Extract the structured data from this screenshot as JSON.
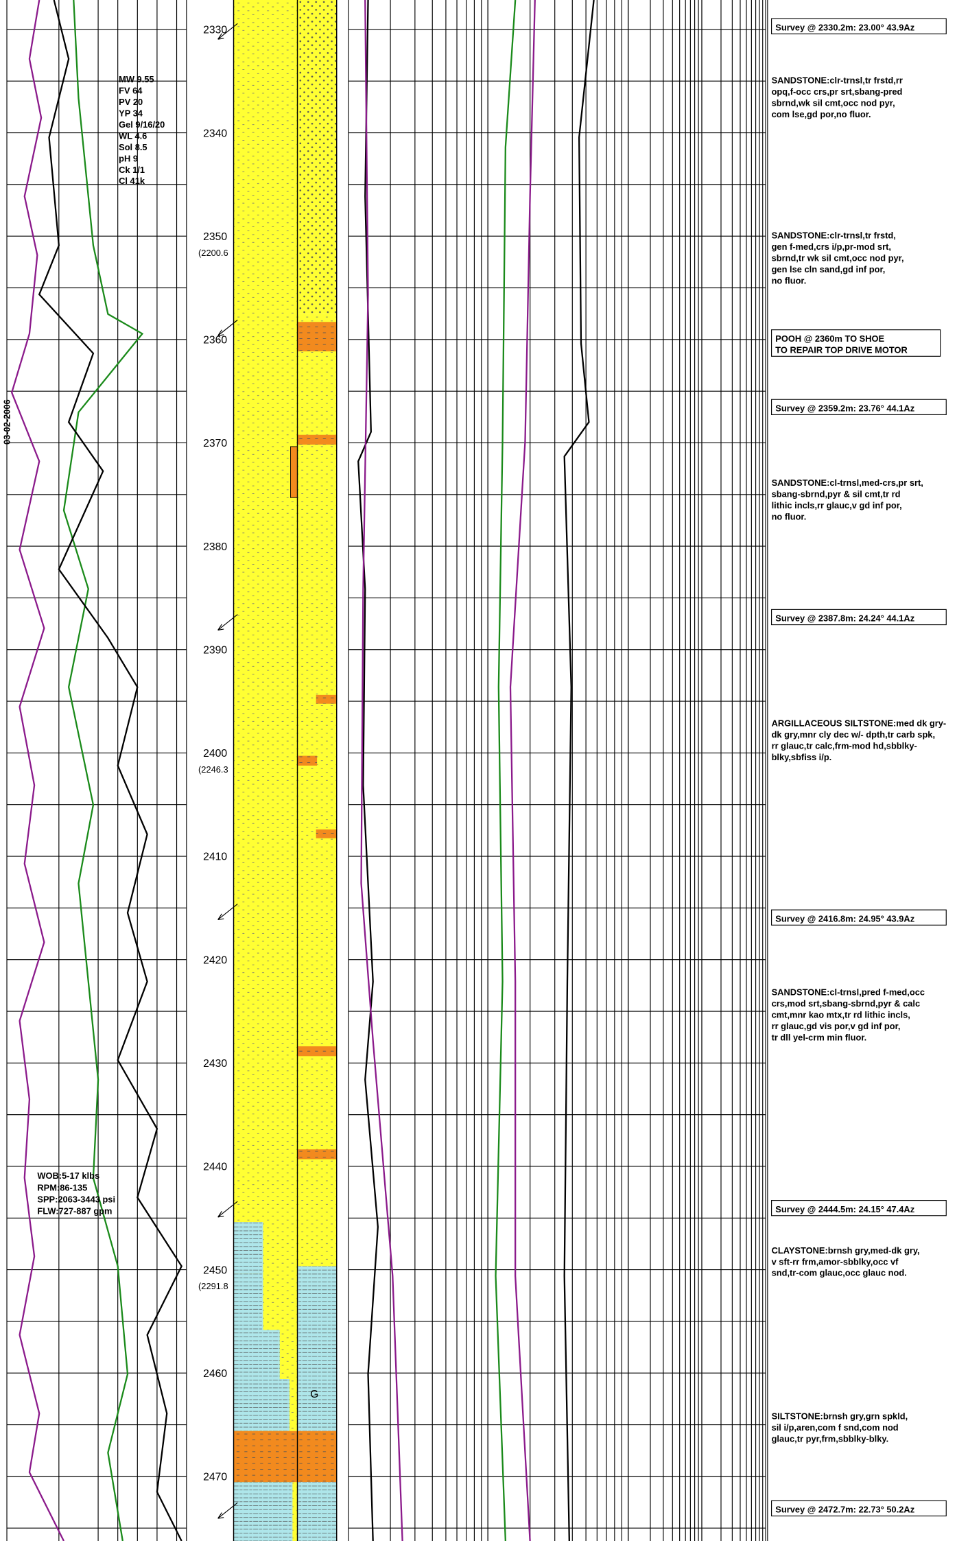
{
  "date": "03-02-2006",
  "depth_ticks": [
    2330,
    2340,
    2350,
    2360,
    2370,
    2380,
    2390,
    2400,
    2410,
    2420,
    2430,
    2440,
    2450,
    2460,
    2470
  ],
  "tvd_labels": [
    "(2200.6",
    "(2246.3",
    "(2291.8"
  ],
  "mud_properties": [
    "MW 9.55",
    "FV 64",
    "PV 20",
    "YP 34",
    "Gel 9/16/20",
    "WL 4.6",
    "Sol 8.5",
    "pH 9",
    "Ck 1/1",
    "Cl 41k"
  ],
  "drilling_parameters": [
    "WOB:5-17 klbs",
    "RPM:86-135",
    "SPP:2063-3443 psi",
    "FLW:727-887 gpm"
  ],
  "lithology_symbol": "G",
  "remarks": [
    {
      "boxed": true,
      "lines": [
        "Survey @ 2330.2m: 23.00° 43.9Az"
      ]
    },
    {
      "boxed": false,
      "lines": [
        "SANDSTONE:clr-trnsl,tr frstd,rr",
        "opq,f-occ crs,pr srt,sbang-pred",
        "sbrnd,wk sil cmt,occ nod pyr,",
        "com lse,gd por,no fluor."
      ]
    },
    {
      "boxed": false,
      "lines": [
        "SANDSTONE:clr-trnsl,tr frstd,",
        "gen f-med,crs i/p,pr-mod srt,",
        "sbrnd,tr wk sil cmt,occ nod pyr,",
        "gen lse cln sand,gd inf por,",
        "no fluor."
      ]
    },
    {
      "boxed": true,
      "lines": [
        "POOH @ 2360m TO SHOE",
        "TO REPAIR TOP DRIVE MOTOR"
      ]
    },
    {
      "boxed": true,
      "lines": [
        "Survey @ 2359.2m: 23.76° 44.1Az"
      ]
    },
    {
      "boxed": false,
      "lines": [
        "SANDSTONE:cl-trnsl,med-crs,pr srt,",
        "sbang-sbrnd,pyr & sil cmt,tr rd",
        "lithic incls,rr glauc,v gd inf por,",
        "no fluor."
      ]
    },
    {
      "boxed": true,
      "lines": [
        "Survey @ 2387.8m: 24.24° 44.1Az"
      ]
    },
    {
      "boxed": false,
      "lines": [
        "ARGILLACEOUS SILTSTONE:med dk gry-",
        "dk gry,mnr cly dec w/- dpth,tr carb spk,",
        "rr glauc,tr calc,frm-mod hd,sbblky-",
        "blky,sbfiss i/p."
      ]
    },
    {
      "boxed": true,
      "lines": [
        "Survey @ 2416.8m: 24.95° 43.9Az"
      ]
    },
    {
      "boxed": false,
      "lines": [
        "SANDSTONE:cl-trnsl,pred f-med,occ",
        "crs,mod srt,sbang-sbrnd,pyr & calc",
        "cmt,mnr kao mtx,tr rd lithic incls,",
        "rr glauc,gd vis por,v gd inf por,",
        "tr dll yel-crm min fluor."
      ]
    },
    {
      "boxed": true,
      "lines": [
        "Survey @ 2444.5m: 24.15° 47.4Az"
      ]
    },
    {
      "boxed": false,
      "lines": [
        "CLAYSTONE:brnsh gry,med-dk gry,",
        "v sft-rr frm,amor-sbblky,occ vf",
        "snd,tr-com glauc,occ glauc nod."
      ]
    },
    {
      "boxed": false,
      "lines": [
        "SILTSTONE:brnsh gry,grn spkld,",
        "sil i/p,aren,com f snd,com nod",
        "glauc,tr pyr,frm,sbblky-blky."
      ]
    },
    {
      "boxed": true,
      "lines": [
        "Survey @ 2472.7m: 22.73° 50.2Az"
      ]
    }
  ]
}
